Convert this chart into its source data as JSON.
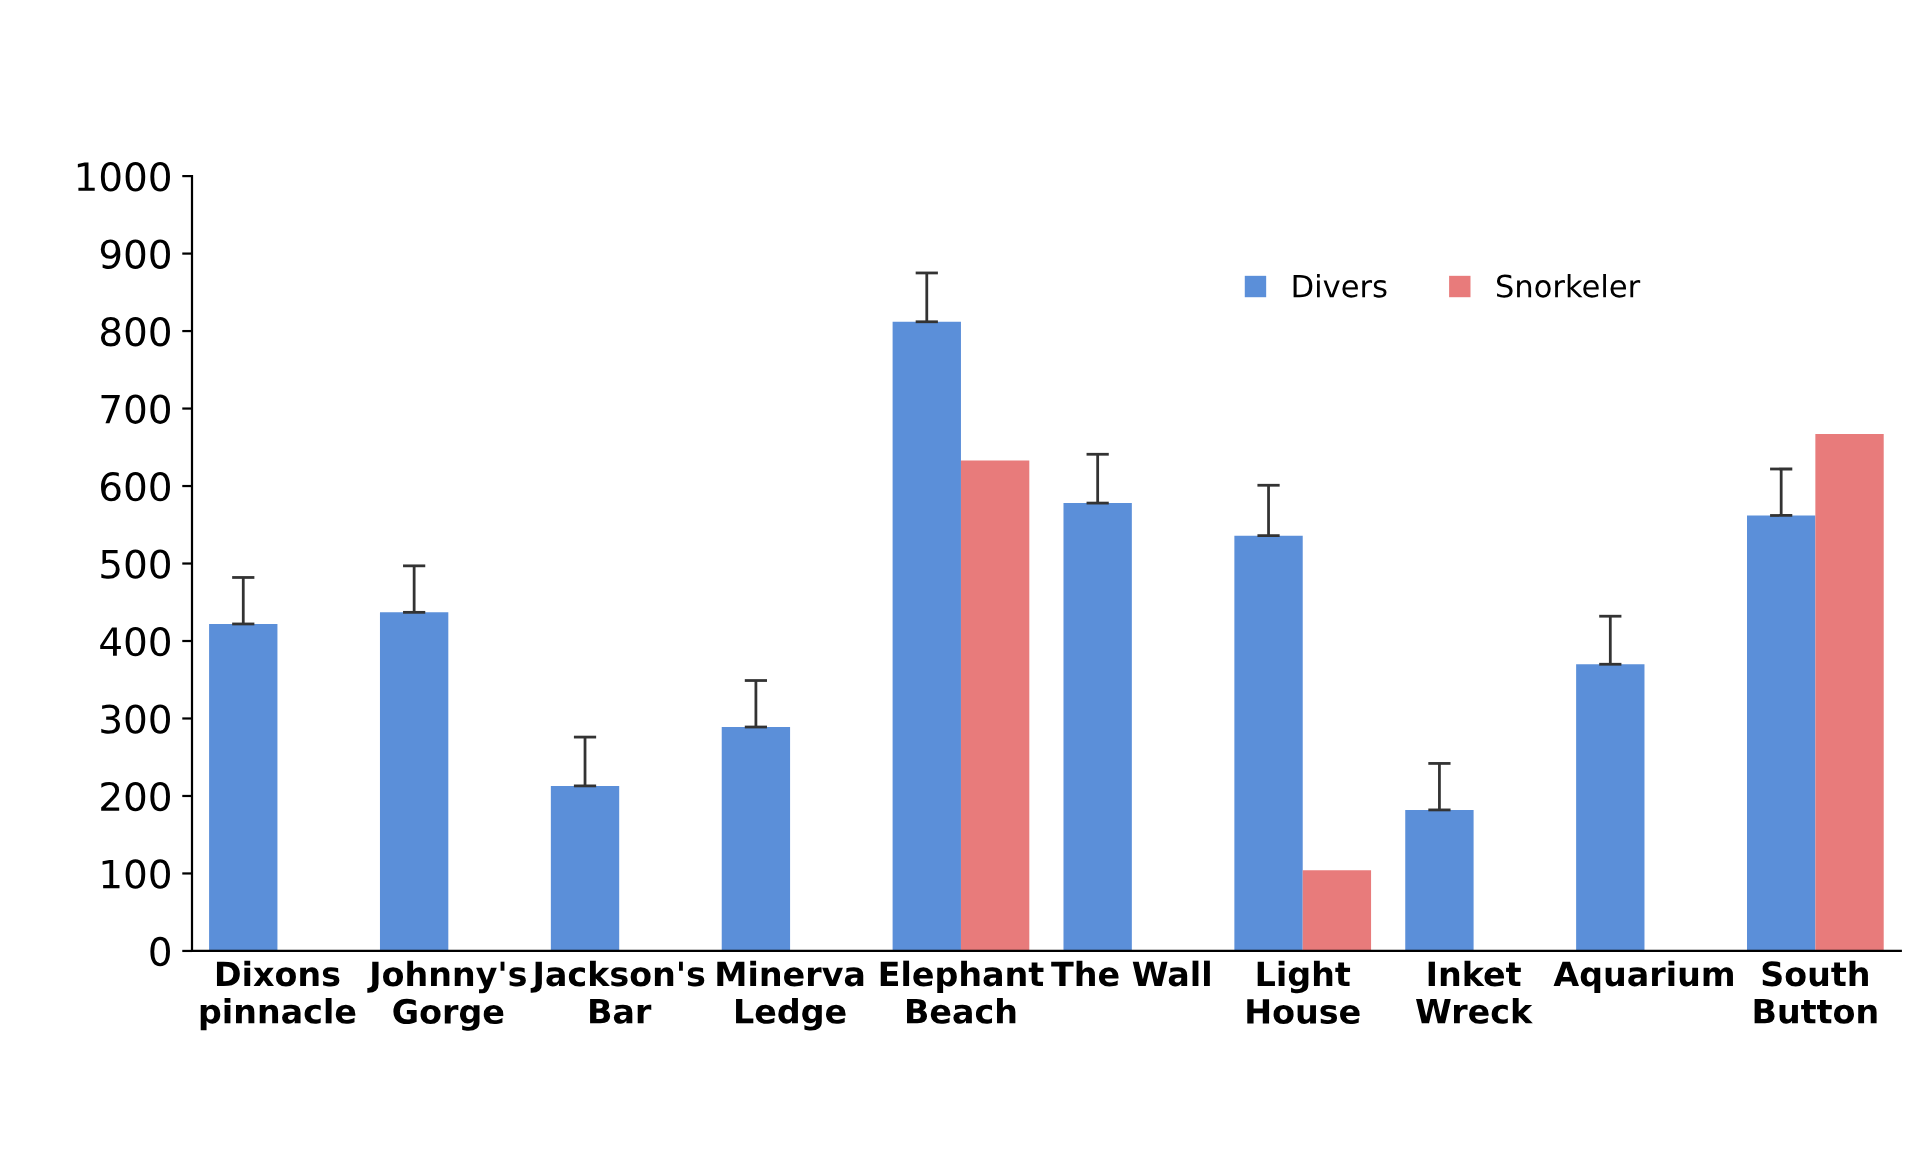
{
  "chart_data": {
    "type": "bar",
    "categories": [
      "Dixons\npinnacle",
      "Johnny's\nGorge",
      "Jackson's\nBar",
      "Minerva\nLedge",
      "Elephant\nBeach",
      "The Wall",
      "Light\nHouse",
      "Inket\nWreck",
      "Aquarium",
      "South\nButton"
    ],
    "series": [
      {
        "name": "Divers",
        "color": "#5b8fd9",
        "values": [
          422,
          437,
          213,
          289,
          812,
          578,
          536,
          182,
          370,
          562
        ],
        "errors": [
          [
            422,
            482
          ],
          [
            437,
            497
          ],
          [
            213,
            276
          ],
          [
            289,
            349
          ],
          [
            812,
            875
          ],
          [
            578,
            641
          ],
          [
            536,
            601
          ],
          [
            182,
            242
          ],
          [
            370,
            432
          ],
          [
            562,
            622
          ]
        ]
      },
      {
        "name": "Snorkeler",
        "color": "#e87b7b",
        "values": [
          null,
          null,
          null,
          null,
          633,
          null,
          104,
          null,
          null,
          667
        ]
      }
    ],
    "ylim": [
      0,
      1000
    ],
    "yticks": [
      0,
      100,
      200,
      300,
      400,
      500,
      600,
      700,
      800,
      900,
      1000
    ],
    "grid": false,
    "legend": "top right"
  }
}
